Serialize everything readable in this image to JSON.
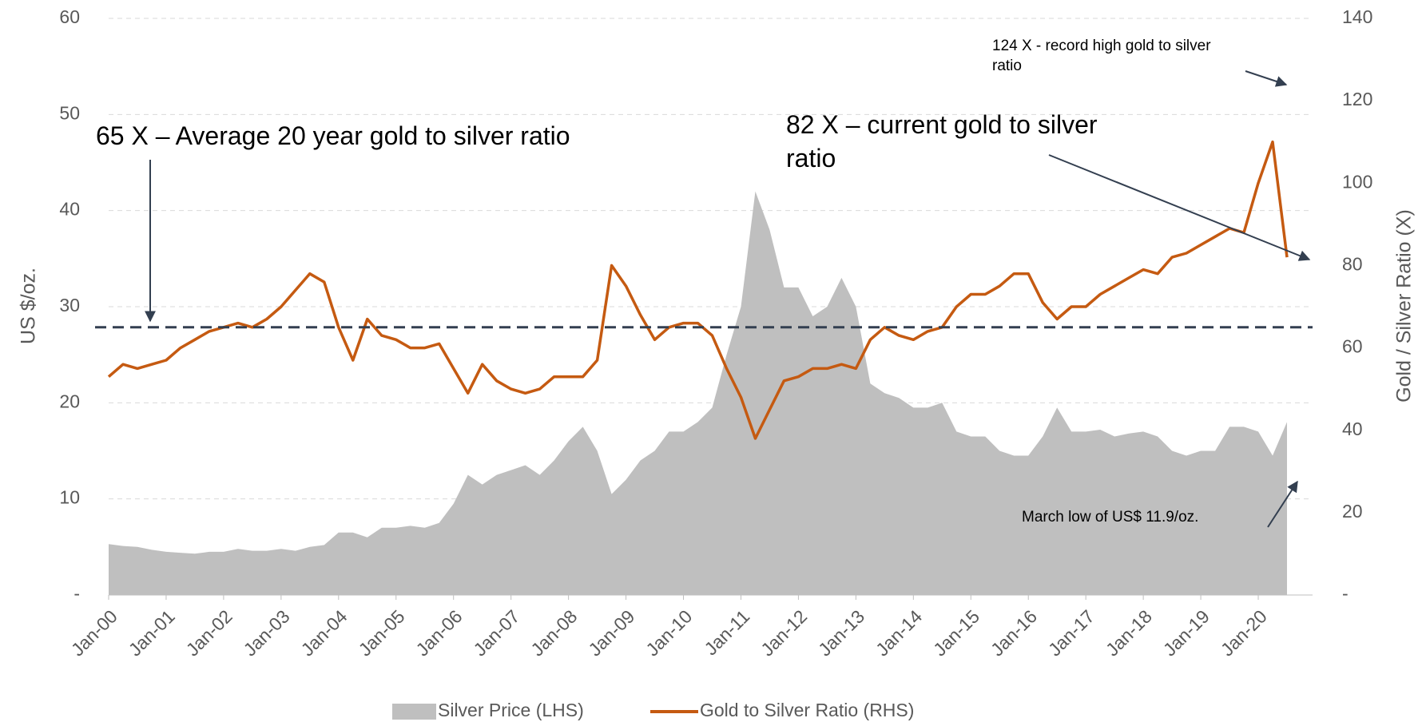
{
  "chart_data": {
    "type": "area-line",
    "x": [
      "2000-01",
      "2000-04",
      "2000-07",
      "2000-10",
      "2001-01",
      "2001-04",
      "2001-07",
      "2001-10",
      "2002-01",
      "2002-04",
      "2002-07",
      "2002-10",
      "2003-01",
      "2003-04",
      "2003-07",
      "2003-10",
      "2004-01",
      "2004-04",
      "2004-07",
      "2004-10",
      "2005-01",
      "2005-04",
      "2005-07",
      "2005-10",
      "2006-01",
      "2006-04",
      "2006-07",
      "2006-10",
      "2007-01",
      "2007-04",
      "2007-07",
      "2007-10",
      "2008-01",
      "2008-04",
      "2008-07",
      "2008-10",
      "2009-01",
      "2009-04",
      "2009-07",
      "2009-10",
      "2010-01",
      "2010-04",
      "2010-07",
      "2010-10",
      "2011-01",
      "2011-04",
      "2011-07",
      "2011-10",
      "2012-01",
      "2012-04",
      "2012-07",
      "2012-10",
      "2013-01",
      "2013-04",
      "2013-07",
      "2013-10",
      "2014-01",
      "2014-04",
      "2014-07",
      "2014-10",
      "2015-01",
      "2015-04",
      "2015-07",
      "2015-10",
      "2016-01",
      "2016-04",
      "2016-07",
      "2016-10",
      "2017-01",
      "2017-04",
      "2017-07",
      "2017-10",
      "2018-01",
      "2018-04",
      "2018-07",
      "2018-10",
      "2019-01",
      "2019-04",
      "2019-07",
      "2019-10",
      "2020-01",
      "2020-04",
      "2020-07"
    ],
    "series": [
      {
        "name": "Silver Price (LHS)",
        "color": "#bfbfbf",
        "values": [
          5.3,
          5.1,
          5.0,
          4.7,
          4.5,
          4.4,
          4.3,
          4.5,
          4.5,
          4.8,
          4.6,
          4.6,
          4.8,
          4.6,
          5.0,
          5.2,
          6.5,
          6.5,
          6.0,
          7.0,
          7.0,
          7.2,
          7.0,
          7.5,
          9.5,
          12.5,
          11.5,
          12.5,
          13.0,
          13.5,
          12.5,
          14.0,
          16.0,
          17.5,
          15.0,
          10.5,
          12.0,
          14.0,
          15.0,
          17.0,
          17.0,
          18.0,
          19.5,
          25.0,
          30.0,
          42.0,
          38.0,
          32.0,
          32.0,
          29.0,
          30.0,
          33.0,
          30.0,
          22.0,
          21.0,
          20.5,
          19.5,
          19.5,
          20.0,
          17.0,
          16.5,
          16.5,
          15.0,
          14.5,
          14.5,
          16.5,
          19.5,
          17.0,
          17.0,
          17.2,
          16.5,
          16.8,
          17.0,
          16.5,
          15.0,
          14.5,
          15.0,
          15.0,
          17.5,
          17.5,
          17.0,
          14.5,
          18.0
        ]
      },
      {
        "name": "Gold to Silver Ratio (RHS)",
        "color": "#c55a11",
        "axis": "y2",
        "values": [
          53,
          56,
          55,
          56,
          57,
          60,
          62,
          64,
          65,
          66,
          65,
          67,
          70,
          74,
          78,
          76,
          65,
          57,
          67,
          63,
          62,
          60,
          60,
          61,
          55,
          49,
          56,
          52,
          50,
          49,
          50,
          53,
          53,
          53,
          57,
          80,
          75,
          68,
          62,
          65,
          66,
          66,
          63,
          55,
          48,
          38,
          45,
          52,
          53,
          55,
          55,
          56,
          55,
          62,
          65,
          63,
          62,
          64,
          65,
          70,
          73,
          73,
          75,
          78,
          78,
          71,
          67,
          70,
          70,
          73,
          75,
          77,
          79,
          78,
          82,
          83,
          85,
          87,
          89,
          88,
          100,
          110,
          82
        ]
      }
    ],
    "xlim": [
      "2000-01",
      "2020-09"
    ],
    "xticks": [
      {
        "value": "2000-01",
        "label": "Jan-00"
      },
      {
        "value": "2001-01",
        "label": "Jan-01"
      },
      {
        "value": "2002-01",
        "label": "Jan-02"
      },
      {
        "value": "2003-01",
        "label": "Jan-03"
      },
      {
        "value": "2004-01",
        "label": "Jan-04"
      },
      {
        "value": "2005-01",
        "label": "Jan-05"
      },
      {
        "value": "2006-01",
        "label": "Jan-06"
      },
      {
        "value": "2007-01",
        "label": "Jan-07"
      },
      {
        "value": "2008-01",
        "label": "Jan-08"
      },
      {
        "value": "2009-01",
        "label": "Jan-09"
      },
      {
        "value": "2010-01",
        "label": "Jan-10"
      },
      {
        "value": "2011-01",
        "label": "Jan-11"
      },
      {
        "value": "2012-01",
        "label": "Jan-12"
      },
      {
        "value": "2013-01",
        "label": "Jan-13"
      },
      {
        "value": "2014-01",
        "label": "Jan-14"
      },
      {
        "value": "2015-01",
        "label": "Jan-15"
      },
      {
        "value": "2016-01",
        "label": "Jan-16"
      },
      {
        "value": "2017-01",
        "label": "Jan-17"
      },
      {
        "value": "2018-01",
        "label": "Jan-18"
      },
      {
        "value": "2019-01",
        "label": "Jan-19"
      },
      {
        "value": "2020-01",
        "label": "Jan-20"
      }
    ],
    "ylim": [
      0,
      60
    ],
    "yticks": [
      {
        "value": 0,
        "label": "-"
      },
      10,
      20,
      30,
      40,
      50,
      60
    ],
    "y2lim": [
      0,
      140
    ],
    "y2ticks": [
      {
        "value": 0,
        "label": "-"
      },
      20,
      40,
      60,
      80,
      100,
      120,
      140
    ],
    "ylabel": "US $/oz.",
    "y2label": "Gold / Silver Ratio (X)",
    "grid": true,
    "average_ratio": 65,
    "average_color": "#333f50",
    "annotations": [
      "65 X – Average 20 year gold to silver ratio",
      "82 X – current gold to silver ratio",
      "124 X - record high gold to silver ratio",
      "March low of US$ 11.9/oz."
    ],
    "legend": "bottom"
  }
}
